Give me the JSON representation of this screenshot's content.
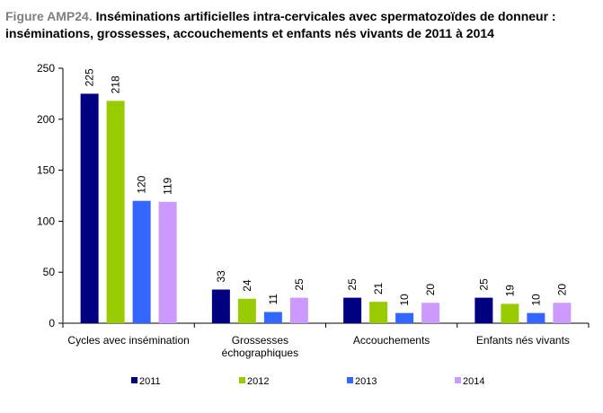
{
  "title": {
    "prefix": "Figure AMP24.",
    "line1": " Inséminations artificielles intra-cervicales avec spermatozoïdes de donneur :",
    "line2": "inséminations, grossesses, accouchements et enfants nés vivants de 2011 à 2014"
  },
  "chart_data": {
    "type": "bar",
    "title": "Figure AMP24. Inséminations artificielles intra-cervicales avec spermatozoïdes de donneur : inséminations, grossesses, accouchements et enfants nés vivants de 2011 à 2014",
    "xlabel": "",
    "ylabel": "",
    "categories": [
      [
        "Cycles avec insémination"
      ],
      [
        "Grossesses",
        "échographiques"
      ],
      [
        "Accouchements"
      ],
      [
        "Enfants nés vivants"
      ]
    ],
    "series": [
      {
        "name": "2011",
        "color": "#000080",
        "values": [
          225,
          33,
          25,
          25
        ]
      },
      {
        "name": "2012",
        "color": "#99cc00",
        "values": [
          218,
          24,
          21,
          19
        ]
      },
      {
        "name": "2013",
        "color": "#3366ff",
        "values": [
          120,
          11,
          10,
          10
        ]
      },
      {
        "name": "2014",
        "color": "#cc99ff",
        "values": [
          119,
          25,
          20,
          20
        ]
      }
    ],
    "ylim": [
      0,
      250
    ],
    "yticks": [
      0,
      50,
      100,
      150,
      200,
      250
    ],
    "grid": false,
    "data_labels": true,
    "legend_position": "bottom"
  }
}
